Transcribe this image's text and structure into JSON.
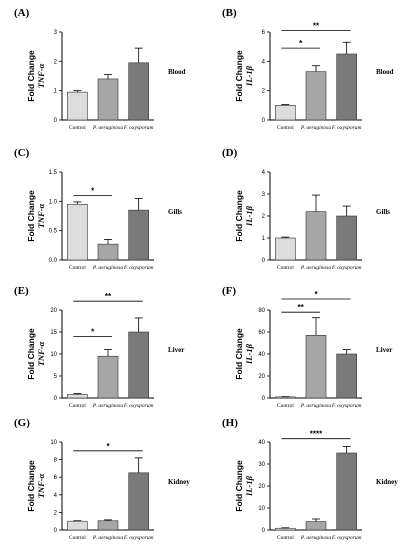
{
  "colors": [
    "#dcdcdc",
    "#a6a6a6",
    "#7a7a7a"
  ],
  "chart_data": [
    {
      "type": "bar",
      "label": "(A)",
      "ylabel_top": "Fold Change",
      "ylabel_gene": "TNF-α",
      "tissue": "Blood",
      "categories": [
        "Control",
        "P. aeruginosa",
        "F. oxysporum"
      ],
      "values": [
        0.95,
        1.4,
        1.95
      ],
      "errors": [
        0.05,
        0.15,
        0.5
      ],
      "ylim": [
        0,
        3
      ],
      "ticks": [
        0,
        1,
        2,
        3
      ],
      "tick_labels": [
        "0",
        "1",
        "2",
        "3"
      ],
      "significance": []
    },
    {
      "type": "bar",
      "label": "(B)",
      "ylabel_top": "Fold Change",
      "ylabel_gene": "IL-1β",
      "tissue": "Blood",
      "categories": [
        "Control",
        "P. aeruginosa",
        "F. oxysporum"
      ],
      "values": [
        1.0,
        3.3,
        4.5
      ],
      "errors": [
        0.05,
        0.4,
        0.8
      ],
      "ylim": [
        0,
        6
      ],
      "ticks": [
        0,
        2,
        4,
        6
      ],
      "tick_labels": [
        "0",
        "2",
        "4",
        "6"
      ],
      "significance": [
        {
          "from": 0,
          "to": 1,
          "y": 4.9,
          "text": "*"
        },
        {
          "from": 0,
          "to": 2,
          "y": 6.1,
          "text": "**"
        }
      ]
    },
    {
      "type": "bar",
      "label": "(C)",
      "ylabel_top": "Fold Change",
      "ylabel_gene": "TNF-α",
      "tissue": "Gills",
      "categories": [
        "Control",
        "P. aeruginosa",
        "F. oxysporum"
      ],
      "values": [
        0.95,
        0.27,
        0.85
      ],
      "errors": [
        0.04,
        0.08,
        0.2
      ],
      "ylim": [
        0,
        1.5
      ],
      "ticks": [
        0,
        0.5,
        1.0,
        1.5
      ],
      "tick_labels": [
        "0.0",
        "0.5",
        "1.0",
        "1.5"
      ],
      "significance": [
        {
          "from": 0,
          "to": 1,
          "y": 1.1,
          "text": "*"
        }
      ]
    },
    {
      "type": "bar",
      "label": "(D)",
      "ylabel_top": "Fold Change",
      "ylabel_gene": "IL-1β",
      "tissue": "Gills",
      "categories": [
        "Control",
        "P. aeruginosa",
        "F. oxysporum"
      ],
      "values": [
        1.0,
        2.2,
        2.0
      ],
      "errors": [
        0.04,
        0.75,
        0.45
      ],
      "ylim": [
        0,
        4
      ],
      "ticks": [
        0,
        1,
        2,
        3,
        4
      ],
      "tick_labels": [
        "0",
        "1",
        "2",
        "3",
        "4"
      ],
      "significance": []
    },
    {
      "type": "bar",
      "label": "(E)",
      "ylabel_top": "Fold Change",
      "ylabel_gene": "TNF-α",
      "tissue": "Liver",
      "categories": [
        "Control",
        "P. aeruginosa",
        "F. oxysporum"
      ],
      "values": [
        0.8,
        9.5,
        15.0
      ],
      "errors": [
        0.2,
        1.5,
        3.2
      ],
      "ylim": [
        0,
        20
      ],
      "ticks": [
        0,
        5,
        10,
        15,
        20
      ],
      "tick_labels": [
        "0",
        "5",
        "10",
        "15",
        "20"
      ],
      "significance": [
        {
          "from": 0,
          "to": 1,
          "y": 14.0,
          "text": "*"
        },
        {
          "from": 0,
          "to": 2,
          "y": 22.0,
          "text": "**"
        }
      ]
    },
    {
      "type": "bar",
      "label": "(F)",
      "ylabel_top": "Fold Change",
      "ylabel_gene": "IL-1β",
      "tissue": "Liver",
      "categories": [
        "Control",
        "P. aeruginosa",
        "F. oxysporum"
      ],
      "values": [
        1.0,
        57.0,
        40.0
      ],
      "errors": [
        0.2,
        16.0,
        4.0
      ],
      "ylim": [
        0,
        80
      ],
      "ticks": [
        0,
        20,
        40,
        60,
        80
      ],
      "tick_labels": [
        "0",
        "20",
        "40",
        "60",
        "80"
      ],
      "significance": [
        {
          "from": 0,
          "to": 1,
          "y": 78.0,
          "text": "**"
        },
        {
          "from": 0,
          "to": 2,
          "y": 90.0,
          "text": "*"
        }
      ]
    },
    {
      "type": "bar",
      "label": "(G)",
      "ylabel_top": "Fold Change",
      "ylabel_gene": "TNF-α",
      "tissue": "Kidney",
      "categories": [
        "Control",
        "P. aeruginosa",
        "F. oxysporum"
      ],
      "values": [
        1.0,
        1.05,
        6.5
      ],
      "errors": [
        0.05,
        0.1,
        1.7
      ],
      "ylim": [
        0,
        10
      ],
      "ticks": [
        0,
        2,
        4,
        6,
        8,
        10
      ],
      "tick_labels": [
        "0",
        "2",
        "4",
        "6",
        "8",
        "10"
      ],
      "significance": [
        {
          "from": 0,
          "to": 2,
          "y": 9.0,
          "text": "*"
        }
      ]
    },
    {
      "type": "bar",
      "label": "(H)",
      "ylabel_top": "Fold Change",
      "ylabel_gene": "IL-1β",
      "tissue": "Kidney",
      "categories": [
        "Control",
        "P. aeruginosa",
        "F. oxysporum"
      ],
      "values": [
        0.8,
        3.8,
        35.0
      ],
      "errors": [
        0.2,
        1.2,
        3.0
      ],
      "ylim": [
        0,
        40
      ],
      "ticks": [
        0,
        10,
        20,
        30,
        40
      ],
      "tick_labels": [
        "0",
        "10",
        "20",
        "30",
        "40"
      ],
      "significance": [
        {
          "from": 0,
          "to": 2,
          "y": 41.5,
          "text": "****"
        }
      ]
    }
  ]
}
